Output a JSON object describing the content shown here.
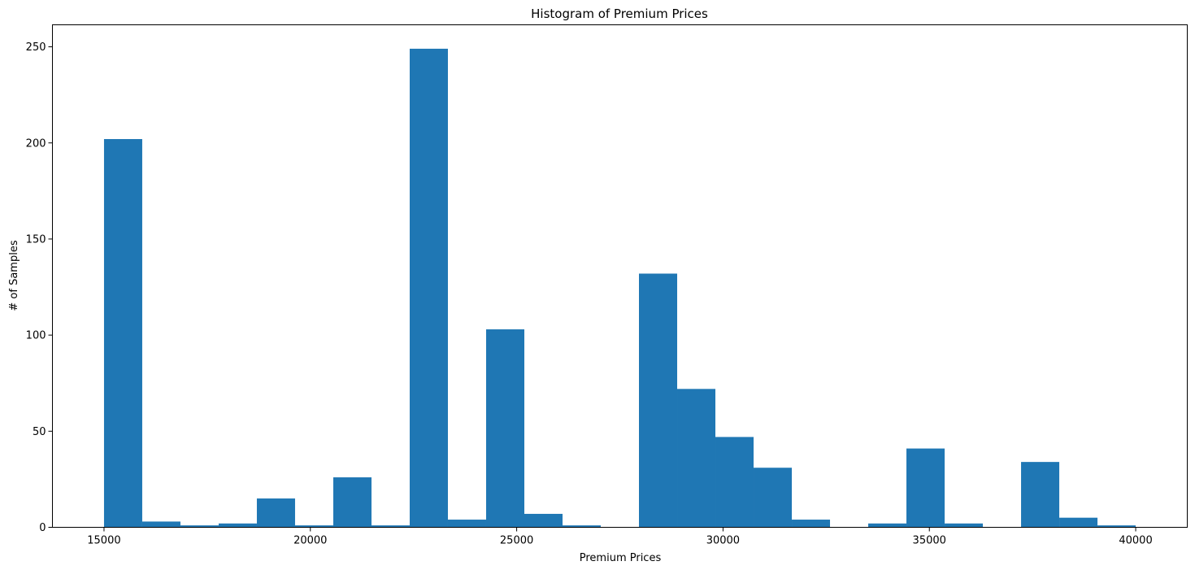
{
  "chart_data": {
    "type": "histogram",
    "title": "Histogram of Premium Prices",
    "xlabel": "Premium Prices",
    "ylabel": "# of Samples",
    "bar_color": "#1f77b4",
    "bin_start": 15000,
    "bin_width": 925.93,
    "counts": [
      202,
      3,
      1,
      2,
      15,
      1,
      26,
      1,
      249,
      4,
      103,
      7,
      1,
      0,
      132,
      72,
      47,
      31,
      4,
      0,
      2,
      41,
      2,
      0,
      34,
      5,
      1
    ],
    "xlim": [
      13750,
      41250
    ],
    "ylim": [
      0,
      261.45
    ],
    "xticks": [
      15000,
      20000,
      25000,
      30000,
      35000,
      40000
    ],
    "xtick_labels": [
      "15000",
      "20000",
      "25000",
      "30000",
      "35000",
      "40000"
    ],
    "yticks": [
      0,
      50,
      100,
      150,
      200,
      250
    ],
    "ytick_labels": [
      "0",
      "50",
      "100",
      "150",
      "200",
      "250"
    ],
    "grid": false,
    "legend": "none"
  }
}
